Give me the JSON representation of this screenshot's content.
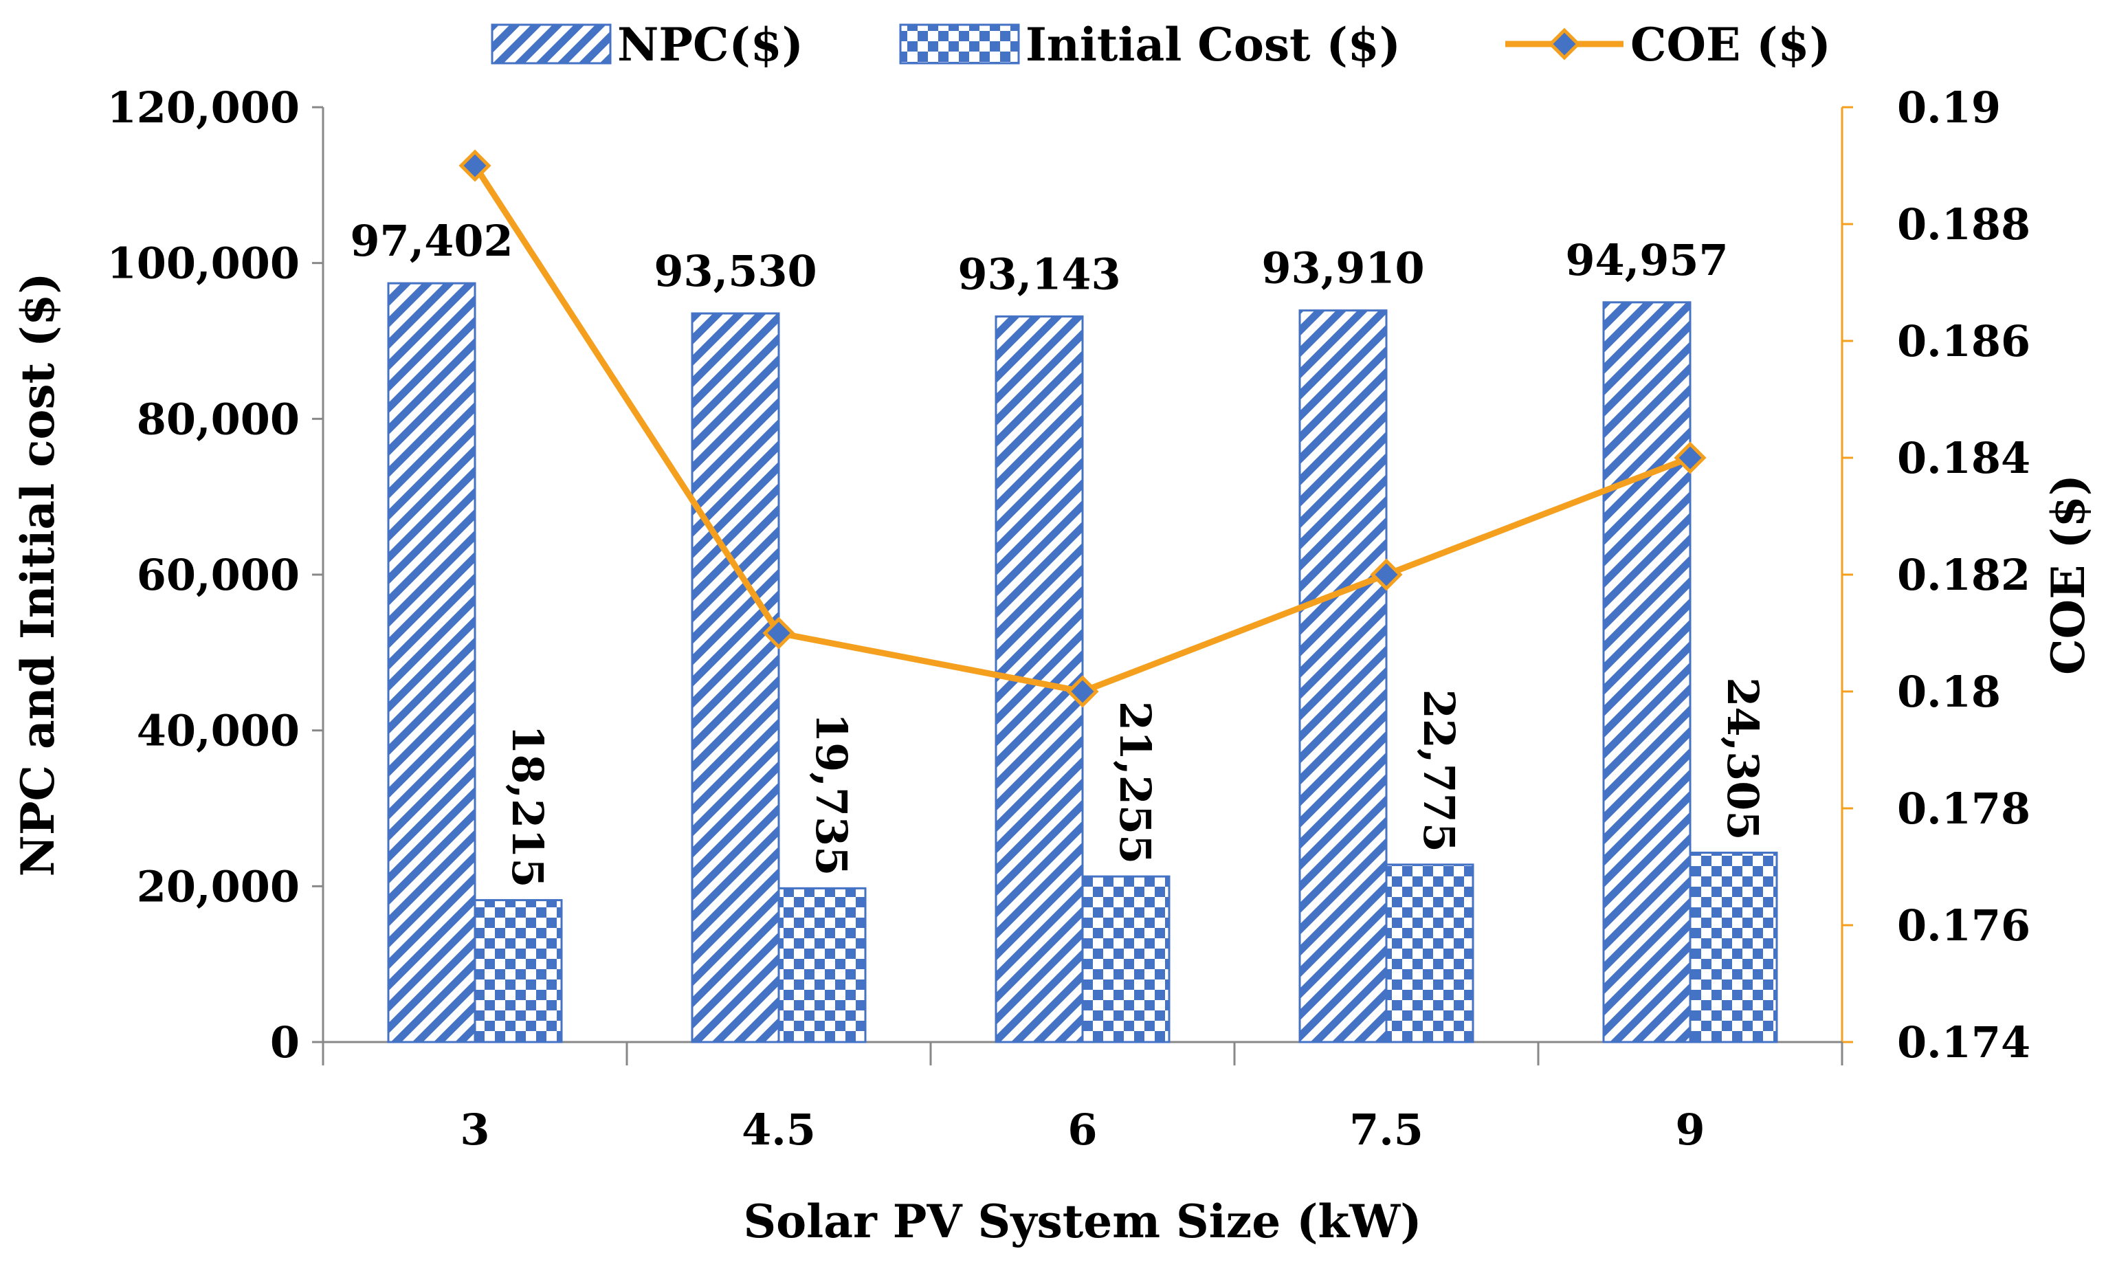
{
  "chart_data": {
    "type": "bar+line",
    "categories": [
      "3",
      "4.5",
      "6",
      "7.5",
      "9"
    ],
    "xlabel": "Solar PV System Size (kW)",
    "ylabel_left": "NPC and Initial cost ($)",
    "ylabel_right": "COE ($)",
    "ylim_left": [
      0,
      120000
    ],
    "ylim_right": [
      0.174,
      0.19
    ],
    "yticks_left": [
      "0",
      "20,000",
      "40,000",
      "60,000",
      "80,000",
      "100,000",
      "120,000"
    ],
    "yticks_left_values": [
      0,
      20000,
      40000,
      60000,
      80000,
      100000,
      120000
    ],
    "yticks_right": [
      "0.174",
      "0.176",
      "0.178",
      "0.18",
      "0.182",
      "0.184",
      "0.186",
      "0.188",
      "0.19"
    ],
    "yticks_right_values": [
      0.174,
      0.176,
      0.178,
      0.18,
      0.182,
      0.184,
      0.186,
      0.188,
      0.19
    ],
    "legend_position": "top",
    "series": [
      {
        "name": "NPC($)",
        "kind": "bar",
        "pattern": "diagonal-stripes",
        "axis": "left",
        "values": [
          97402,
          93530,
          93143,
          93910,
          94957
        ],
        "labels": [
          "97,402",
          "93,530",
          "93,143",
          "93,910",
          "94,957"
        ]
      },
      {
        "name": "Initial Cost ($)",
        "kind": "bar",
        "pattern": "checkerboard",
        "axis": "left",
        "values": [
          18215,
          19735,
          21255,
          22775,
          24305
        ],
        "labels": [
          "18,215",
          "19,735",
          "21,255",
          "22,775",
          "24,305"
        ]
      },
      {
        "name": "COE ($)",
        "kind": "line",
        "marker": "diamond",
        "axis": "right",
        "values": [
          0.189,
          0.181,
          0.18,
          0.182,
          0.184
        ]
      }
    ],
    "colors": {
      "bar": "#4472C4",
      "line": "#F4A01E",
      "marker": "#4472C4",
      "axis": "#888888",
      "right_axis": "#F4A01E"
    }
  }
}
